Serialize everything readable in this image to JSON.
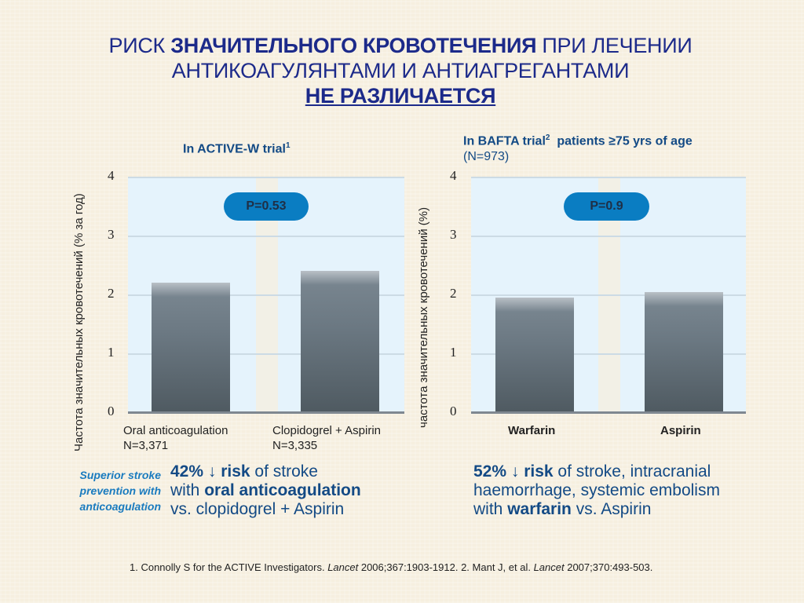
{
  "title": {
    "line1_prefix": "РИСК ",
    "line1_bold": "ЗНАЧИТЕЛЬНОГО КРОВОТЕЧЕНИЯ",
    "line1_suffix": " ПРИ ЛЕЧЕНИИ",
    "line2": "АНТИКОАГУЛЯНТАМИ И АНТИАГРЕГАНТАМИ",
    "line3": "НЕ РАЗЛИЧАЕТСЯ"
  },
  "left_chart": {
    "ylabel": "Частота значительных кровотечений (% за год)",
    "title": "In ACTIVE-W trial",
    "title_sup": "1",
    "p_value": "P=0.53",
    "ticks": [
      "4",
      "3",
      "2",
      "1",
      "0"
    ],
    "bars": [
      {
        "label": "Oral anticoagulation",
        "n": "N=3,371",
        "value": 2.2
      },
      {
        "label": "Clopidogrel + Aspirin",
        "n": "N=3,335",
        "value": 2.4
      }
    ],
    "side_note": [
      "Superior stroke",
      "prevention with",
      "anticoagulation"
    ],
    "note": {
      "pct": "42%",
      "arrow": "↓",
      "risk": "risk",
      "l1_rest": " of stroke",
      "l2_pre": "with ",
      "l2_bold": "oral anticoagulation",
      "l3": "vs. clopidogrel + Aspirin"
    }
  },
  "right_chart": {
    "ylabel": "частота значительных кровотечений (%)",
    "title": "In BAFTA trial",
    "title_sup": "2",
    "title_rest": "  patients ≥75 yrs of age",
    "subtitle": "(N=973)",
    "p_value": "P=0.9",
    "ticks": [
      "4",
      "3",
      "2",
      "1",
      "0"
    ],
    "bars": [
      {
        "label": "Warfarin",
        "value": 1.95
      },
      {
        "label": "Aspirin",
        "value": 2.04
      }
    ],
    "note": {
      "pct": "52%",
      "arrow": "↓",
      "risk": "risk",
      "l1_rest": " of stroke, intracranial",
      "l2": "haemorrhage, systemic embolism",
      "l3_pre": "with ",
      "l3_bold": "warfarin",
      "l3_rest": " vs. Aspirin"
    }
  },
  "footnote": {
    "p1": "1. Connolly S for the ACTIVE Investigators. ",
    "j1": "Lancet",
    "p2": " 2006;367:1903-1912. 2. Mant J, et al. ",
    "j2": "Lancet",
    "p3": " 2007;370:493-503."
  },
  "chart_data": [
    {
      "type": "bar",
      "title": "In ACTIVE-W trial¹",
      "categories": [
        "Oral anticoagulation (N=3,371)",
        "Clopidogrel + Aspirin (N=3,335)"
      ],
      "values": [
        2.2,
        2.4
      ],
      "ylabel": "Частота значительных кровотечений (% за год)",
      "ylim": [
        0,
        4
      ],
      "yticks": [
        0,
        1,
        2,
        3,
        4
      ],
      "grid": true,
      "annotations": [
        "P=0.53"
      ]
    },
    {
      "type": "bar",
      "title": "In BAFTA trial² patients ≥75 yrs of age (N=973)",
      "categories": [
        "Warfarin",
        "Aspirin"
      ],
      "values": [
        1.95,
        2.04
      ],
      "ylabel": "частота значительных кровотечений (%)",
      "ylim": [
        0,
        4
      ],
      "yticks": [
        0,
        1,
        2,
        3,
        4
      ],
      "grid": true,
      "annotations": [
        "P=0.9"
      ]
    }
  ]
}
